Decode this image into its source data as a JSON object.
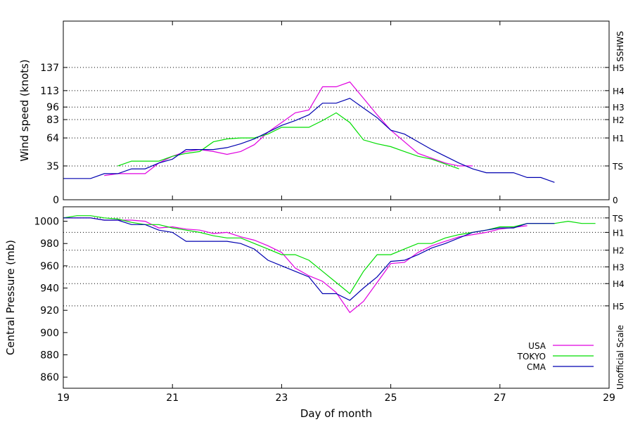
{
  "colors": {
    "USA": "#e000e0",
    "TOKYO": "#00dd00",
    "CMA": "#0000b0"
  },
  "chart_data": [
    {
      "type": "line",
      "ylabel": "Wind speed (knots)",
      "xlim": [
        19,
        29
      ],
      "ylim": [
        0,
        185
      ],
      "yticks": [
        0,
        35,
        64,
        83,
        96,
        113,
        137
      ],
      "right_scale_title": "SSHWS",
      "right_scale": [
        {
          "label": "0",
          "y": 0
        },
        {
          "label": "TS",
          "y": 35
        },
        {
          "label": "H1",
          "y": 64
        },
        {
          "label": "H2",
          "y": 83
        },
        {
          "label": "H3",
          "y": 96
        },
        {
          "label": "H4",
          "y": 113
        },
        {
          "label": "H5",
          "y": 137
        }
      ],
      "series": [
        {
          "name": "USA",
          "x": [
            19.75,
            20.0,
            20.25,
            20.5,
            20.75,
            21.0,
            21.25,
            21.5,
            21.75,
            22.0,
            22.25,
            22.5,
            22.75,
            23.0,
            23.25,
            23.5,
            23.75,
            24.0,
            24.25,
            24.5,
            24.75,
            25.0,
            25.25,
            25.5,
            25.75,
            26.0,
            26.25,
            26.5
          ],
          "y": [
            25,
            27,
            27,
            27,
            38,
            45,
            50,
            52,
            50,
            47,
            50,
            57,
            70,
            80,
            90,
            93,
            117,
            117,
            122,
            105,
            88,
            72,
            60,
            48,
            43,
            38,
            35,
            35
          ]
        },
        {
          "name": "TOKYO",
          "x": [
            20.0,
            20.25,
            20.5,
            20.75,
            21.0,
            21.25,
            21.5,
            21.75,
            22.0,
            22.25,
            22.5,
            22.75,
            23.0,
            23.25,
            23.5,
            23.75,
            24.0,
            24.25,
            24.5,
            24.75,
            25.0,
            25.25,
            25.5,
            25.75,
            26.0,
            26.25
          ],
          "y": [
            35,
            40,
            40,
            40,
            45,
            48,
            50,
            60,
            63,
            64,
            64,
            68,
            75,
            75,
            75,
            82,
            90,
            80,
            62,
            58,
            55,
            50,
            45,
            42,
            37,
            32
          ]
        },
        {
          "name": "CMA",
          "x": [
            19.0,
            19.25,
            19.5,
            19.75,
            20.0,
            20.25,
            20.5,
            20.75,
            21.0,
            21.25,
            21.5,
            21.75,
            22.0,
            22.25,
            22.5,
            22.75,
            23.0,
            23.25,
            23.5,
            23.75,
            24.0,
            24.25,
            24.5,
            24.75,
            25.0,
            25.25,
            25.5,
            25.75,
            26.0,
            26.25,
            26.5,
            26.75,
            27.0,
            27.25,
            27.5,
            27.75,
            28.0
          ],
          "y": [
            22,
            22,
            22,
            27,
            27,
            32,
            32,
            38,
            42,
            52,
            52,
            52,
            54,
            58,
            63,
            70,
            77,
            82,
            88,
            100,
            100,
            105,
            95,
            85,
            72,
            68,
            60,
            52,
            45,
            38,
            32,
            28,
            28,
            28,
            23,
            23,
            18
          ]
        }
      ]
    },
    {
      "type": "line",
      "xlabel": "Day of month",
      "ylabel": "Central Pressure (mb)",
      "xlim": [
        19,
        29
      ],
      "ylim": [
        850,
        1013
      ],
      "xticks": [
        19,
        21,
        23,
        25,
        27,
        29
      ],
      "yticks": [
        860,
        880,
        900,
        920,
        940,
        960,
        980,
        1000
      ],
      "right_scale_title": "Unofficial Scale",
      "right_scale": [
        {
          "label": "TS",
          "y": 1003
        },
        {
          "label": "H1",
          "y": 990
        },
        {
          "label": "H2",
          "y": 974
        },
        {
          "label": "H3",
          "y": 959
        },
        {
          "label": "H4",
          "y": 944
        },
        {
          "label": "H5",
          "y": 924
        }
      ],
      "legend": [
        {
          "name": "USA"
        },
        {
          "name": "TOKYO"
        },
        {
          "name": "CMA"
        }
      ],
      "legend_position": "bottom-right",
      "series": [
        {
          "name": "USA",
          "x": [
            19.0,
            19.5,
            19.75,
            20.0,
            20.25,
            20.5,
            20.75,
            21.0,
            21.25,
            21.5,
            21.75,
            22.0,
            22.25,
            22.5,
            22.75,
            23.0,
            23.25,
            23.5,
            23.75,
            24.0,
            24.25,
            24.5,
            24.75,
            25.0,
            25.25,
            25.5,
            25.75,
            26.0,
            26.25,
            26.5,
            26.75,
            27.0,
            27.5
          ],
          "y": [
            1003,
            1003,
            1001,
            1001,
            1001,
            1000,
            994,
            995,
            993,
            992,
            989,
            990,
            986,
            983,
            978,
            972,
            958,
            951,
            946,
            936,
            918,
            928,
            945,
            962,
            963,
            972,
            978,
            982,
            986,
            988,
            990,
            993,
            996
          ]
        },
        {
          "name": "TOKYO",
          "x": [
            19.0,
            19.25,
            19.5,
            19.75,
            20.0,
            20.25,
            20.5,
            20.75,
            21.0,
            21.25,
            21.5,
            21.75,
            22.0,
            22.25,
            22.5,
            22.75,
            23.0,
            23.25,
            23.5,
            23.75,
            24.0,
            24.25,
            24.5,
            24.75,
            25.0,
            25.25,
            25.5,
            25.75,
            26.0,
            26.25,
            26.5,
            26.75,
            27.0,
            27.25,
            27.5,
            27.75,
            28.0,
            28.25,
            28.5,
            28.75
          ],
          "y": [
            1003,
            1005,
            1005,
            1003,
            1002,
            999,
            997,
            997,
            994,
            992,
            990,
            987,
            985,
            985,
            980,
            975,
            970,
            970,
            965,
            955,
            945,
            935,
            955,
            970,
            970,
            975,
            980,
            980,
            985,
            988,
            990,
            992,
            995,
            995,
            998,
            998,
            998,
            1000,
            998,
            998
          ]
        },
        {
          "name": "CMA",
          "x": [
            19.0,
            19.25,
            19.5,
            19.75,
            20.0,
            20.25,
            20.5,
            20.75,
            21.0,
            21.25,
            21.5,
            21.75,
            22.0,
            22.25,
            22.5,
            22.75,
            23.0,
            23.25,
            23.5,
            23.75,
            24.0,
            24.25,
            24.5,
            24.75,
            25.0,
            25.25,
            25.5,
            25.75,
            26.0,
            26.25,
            26.5,
            26.75,
            27.0,
            27.25,
            27.5,
            27.75,
            28.0
          ],
          "y": [
            1003,
            1003,
            1003,
            1001,
            1001,
            997,
            997,
            992,
            990,
            982,
            982,
            982,
            982,
            980,
            975,
            965,
            960,
            955,
            950,
            935,
            935,
            929,
            940,
            950,
            964,
            965,
            970,
            976,
            980,
            985,
            990,
            992,
            994,
            994,
            998,
            998,
            998
          ]
        }
      ]
    }
  ]
}
